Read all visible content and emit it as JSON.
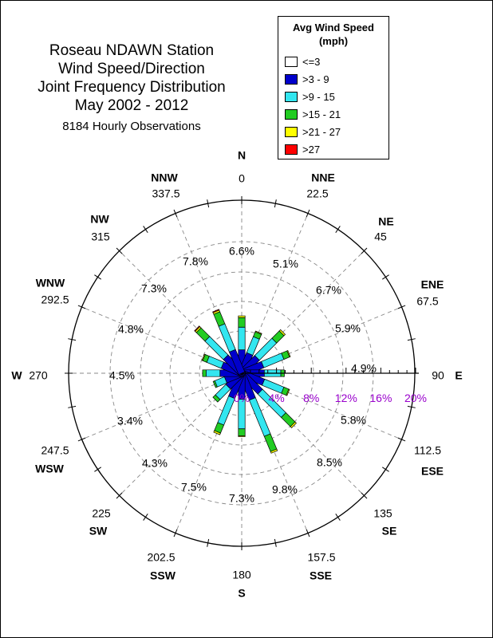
{
  "title": {
    "lines": [
      "Roseau NDAWN Station",
      "Wind Speed/Direction",
      "Joint Frequency Distribution",
      "May 2002 - 2012"
    ],
    "subtitle": "8184 Hourly Observations"
  },
  "legend": {
    "title": "Avg Wind Speed",
    "unit": "(mph)",
    "bins": [
      {
        "label": "<=3",
        "color": "#ffffff"
      },
      {
        "label": ">3 - 9",
        "color": "#0000cc"
      },
      {
        "label": ">9 - 15",
        "color": "#33e6f0"
      },
      {
        "label": ">15 - 21",
        "color": "#22cc22"
      },
      {
        "label": ">21 - 27",
        "color": "#ffff00"
      },
      {
        "label": ">27",
        "color": "#ff0000"
      }
    ]
  },
  "chart_data": {
    "type": "wind-rose",
    "radial_axis": {
      "ticks": [
        0,
        4,
        8,
        12,
        16,
        20
      ],
      "tick_labels": [
        "0%",
        "4%",
        "8%",
        "12%",
        "16%",
        "20%"
      ],
      "tick_color": "#9900cc"
    },
    "directions": [
      {
        "label": "N",
        "degrees": "0",
        "percent_label": "6.6%",
        "segments": [
          0,
          2.7,
          2.6,
          1.1,
          0.2,
          0
        ]
      },
      {
        "label": "NNE",
        "degrees": "22.5",
        "percent_label": "5.1%",
        "segments": [
          0,
          2.4,
          2.0,
          0.6,
          0.1,
          0
        ]
      },
      {
        "label": "NE",
        "degrees": "45",
        "percent_label": "6.7%",
        "segments": [
          0,
          2.5,
          2.8,
          1.2,
          0.2,
          0
        ]
      },
      {
        "label": "ENE",
        "degrees": "67.5",
        "percent_label": "5.9%",
        "segments": [
          0,
          2.6,
          2.5,
          0.7,
          0.1,
          0
        ]
      },
      {
        "label": "E",
        "degrees": "90",
        "percent_label": "4.9%",
        "segments": [
          0,
          2.6,
          1.9,
          0.4,
          0,
          0
        ]
      },
      {
        "label": "ESE",
        "degrees": "112.5",
        "percent_label": "5.8%",
        "segments": [
          0,
          2.7,
          2.4,
          0.6,
          0.1,
          0
        ]
      },
      {
        "label": "SE",
        "degrees": "135",
        "percent_label": "8.5%",
        "segments": [
          0,
          3.0,
          3.8,
          1.5,
          0.2,
          0
        ]
      },
      {
        "label": "SSE",
        "degrees": "157.5",
        "percent_label": "9.8%",
        "segments": [
          0,
          3.2,
          4.5,
          1.9,
          0.2,
          0
        ]
      },
      {
        "label": "S",
        "degrees": "180",
        "percent_label": "7.3%",
        "segments": [
          0,
          3.0,
          3.4,
          0.8,
          0.1,
          0
        ]
      },
      {
        "label": "SSW",
        "degrees": "202.5",
        "percent_label": "7.5%",
        "segments": [
          0,
          3.0,
          3.3,
          1.0,
          0.2,
          0
        ]
      },
      {
        "label": "SW",
        "degrees": "225",
        "percent_label": "4.3%",
        "segments": [
          0,
          2.2,
          1.7,
          0.4,
          0,
          0
        ]
      },
      {
        "label": "WSW",
        "degrees": "247.5",
        "percent_label": "3.4%",
        "segments": [
          0,
          2.0,
          1.2,
          0.2,
          0,
          0
        ]
      },
      {
        "label": "W",
        "degrees": "270",
        "percent_label": "4.5%",
        "segments": [
          0,
          2.5,
          1.6,
          0.4,
          0,
          0
        ]
      },
      {
        "label": "WNW",
        "degrees": "292.5",
        "percent_label": "4.8%",
        "segments": [
          0,
          2.4,
          1.8,
          0.5,
          0.1,
          0
        ]
      },
      {
        "label": "NW",
        "degrees": "315",
        "percent_label": "7.3%",
        "segments": [
          0,
          2.6,
          3.0,
          1.4,
          0.2,
          0.1
        ]
      },
      {
        "label": "NNW",
        "degrees": "337.5",
        "percent_label": "7.8%",
        "segments": [
          0,
          2.8,
          3.2,
          1.5,
          0.2,
          0.1
        ]
      }
    ]
  }
}
